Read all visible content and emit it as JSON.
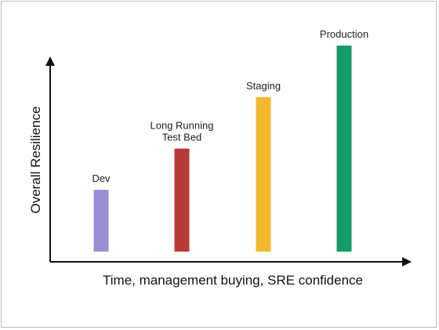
{
  "chart_data": {
    "type": "bar",
    "title": "",
    "xlabel": "Time, management buying, SRE confidence",
    "ylabel": "Overall Resilience",
    "categories": [
      {
        "label_lines": [
          "Dev"
        ],
        "color": "#9a8fd6"
      },
      {
        "label_lines": [
          "Long Running",
          "Test Bed"
        ],
        "color": "#b83a35"
      },
      {
        "label_lines": [
          "Staging"
        ],
        "color": "#f4b82d"
      },
      {
        "label_lines": [
          "Production"
        ],
        "color": "#149c68"
      }
    ],
    "values": [
      3,
      5,
      7.5,
      10
    ],
    "ylim": [
      0,
      10.5
    ],
    "grid": false,
    "legend": "none"
  }
}
